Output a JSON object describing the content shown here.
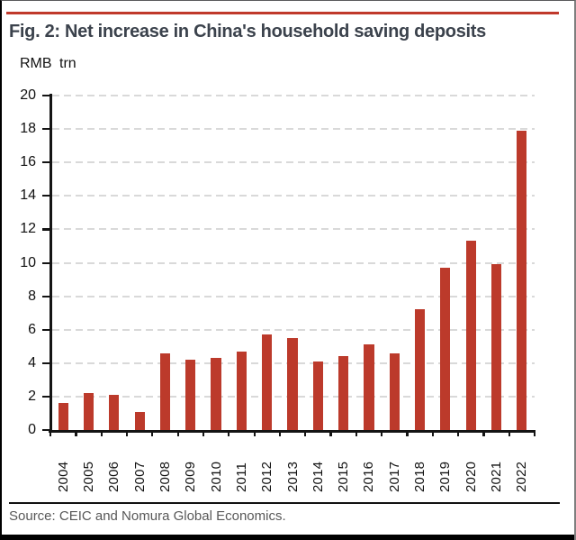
{
  "figure": {
    "title": "Fig. 2: Net increase in China's household saving deposits",
    "unit_label": "RMB trn",
    "source": "Source: CEIC and Nomura Global Economics."
  },
  "colors": {
    "bar": "#bc3a2b",
    "accent_rule": "#c0392b",
    "title_text": "#3b424c",
    "source_text": "#585858",
    "gridline": "#d9d9d9",
    "axis": "#141414"
  },
  "chart_data": {
    "type": "bar",
    "title": "Fig. 2: Net increase in China's household saving deposits",
    "ylabel": "RMB trn",
    "xlabel": "",
    "categories": [
      "2004",
      "2005",
      "2006",
      "2007",
      "2008",
      "2009",
      "2010",
      "2011",
      "2012",
      "2013",
      "2014",
      "2015",
      "2016",
      "2017",
      "2018",
      "2019",
      "2020",
      "2021",
      "2022"
    ],
    "values": [
      1.6,
      2.2,
      2.1,
      1.1,
      4.6,
      4.2,
      4.3,
      4.7,
      5.7,
      5.5,
      4.1,
      4.4,
      5.1,
      4.6,
      7.2,
      9.7,
      11.3,
      9.9,
      17.9
    ],
    "ylim": [
      0,
      20
    ],
    "yticks": [
      0,
      2,
      4,
      6,
      8,
      10,
      12,
      14,
      16,
      18,
      20
    ],
    "grid": "dashed-horizontal",
    "legend": "none",
    "bar_color": "#bc3a2b",
    "source": "Source: CEIC and Nomura Global Economics."
  }
}
